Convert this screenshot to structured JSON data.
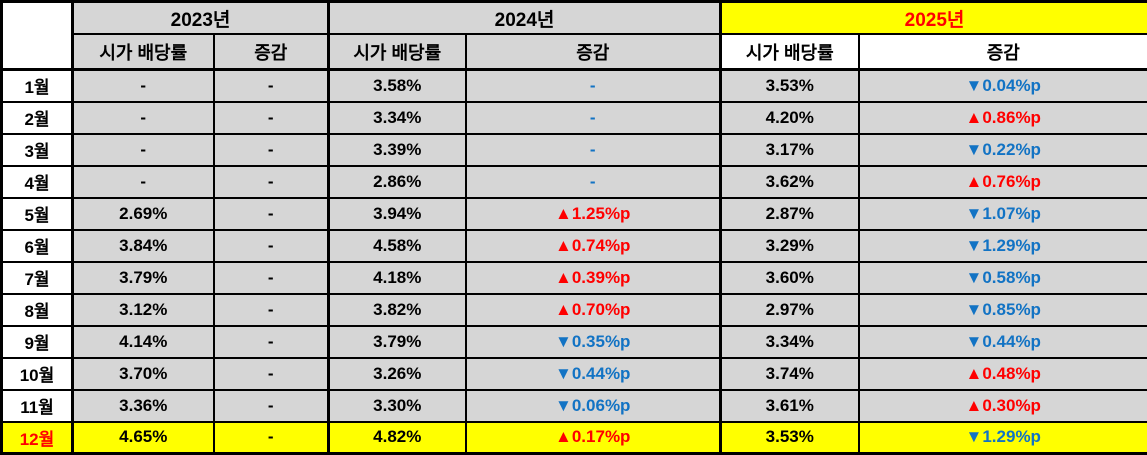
{
  "colors": {
    "header_gray": "#d6d6d6",
    "highlight_yellow": "#ffff00",
    "increase_red": "#ff0000",
    "decrease_blue": "#1273c4",
    "border_black": "#000000"
  },
  "chart_data": {
    "type": "table",
    "corner_label": "",
    "years": [
      {
        "label": "2023년",
        "highlight": false
      },
      {
        "label": "2024년",
        "highlight": false
      },
      {
        "label": "2025년",
        "highlight": true
      }
    ],
    "sub_headers": {
      "yield": "시가 배당률",
      "change": "증감"
    },
    "rows": [
      {
        "month": "1월",
        "highlight": false,
        "y2023_yield": "-",
        "y2023_change": "-",
        "y2023_change_color": "black",
        "y2024_yield": "3.58%",
        "y2024_change": "-",
        "y2024_change_color": "blue",
        "y2025_yield": "3.53%",
        "y2025_change": "▼0.04%p",
        "y2025_change_color": "blue"
      },
      {
        "month": "2월",
        "highlight": false,
        "y2023_yield": "-",
        "y2023_change": "-",
        "y2023_change_color": "black",
        "y2024_yield": "3.34%",
        "y2024_change": "-",
        "y2024_change_color": "blue",
        "y2025_yield": "4.20%",
        "y2025_change": "▲0.86%p",
        "y2025_change_color": "red"
      },
      {
        "month": "3월",
        "highlight": false,
        "y2023_yield": "-",
        "y2023_change": "-",
        "y2023_change_color": "black",
        "y2024_yield": "3.39%",
        "y2024_change": "-",
        "y2024_change_color": "blue",
        "y2025_yield": "3.17%",
        "y2025_change": "▼0.22%p",
        "y2025_change_color": "blue"
      },
      {
        "month": "4월",
        "highlight": false,
        "y2023_yield": "-",
        "y2023_change": "-",
        "y2023_change_color": "black",
        "y2024_yield": "2.86%",
        "y2024_change": "-",
        "y2024_change_color": "blue",
        "y2025_yield": "3.62%",
        "y2025_change": "▲0.76%p",
        "y2025_change_color": "red"
      },
      {
        "month": "5월",
        "highlight": false,
        "y2023_yield": "2.69%",
        "y2023_change": "-",
        "y2023_change_color": "black",
        "y2024_yield": "3.94%",
        "y2024_change": "▲1.25%p",
        "y2024_change_color": "red",
        "y2025_yield": "2.87%",
        "y2025_change": "▼1.07%p",
        "y2025_change_color": "blue"
      },
      {
        "month": "6월",
        "highlight": false,
        "y2023_yield": "3.84%",
        "y2023_change": "-",
        "y2023_change_color": "black",
        "y2024_yield": "4.58%",
        "y2024_change": "▲0.74%p",
        "y2024_change_color": "red",
        "y2025_yield": "3.29%",
        "y2025_change": "▼1.29%p",
        "y2025_change_color": "blue"
      },
      {
        "month": "7월",
        "highlight": false,
        "y2023_yield": "3.79%",
        "y2023_change": "-",
        "y2023_change_color": "black",
        "y2024_yield": "4.18%",
        "y2024_change": "▲0.39%p",
        "y2024_change_color": "red",
        "y2025_yield": "3.60%",
        "y2025_change": "▼0.58%p",
        "y2025_change_color": "blue"
      },
      {
        "month": "8월",
        "highlight": false,
        "y2023_yield": "3.12%",
        "y2023_change": "-",
        "y2023_change_color": "black",
        "y2024_yield": "3.82%",
        "y2024_change": "▲0.70%p",
        "y2024_change_color": "red",
        "y2025_yield": "2.97%",
        "y2025_change": "▼0.85%p",
        "y2025_change_color": "blue"
      },
      {
        "month": "9월",
        "highlight": false,
        "y2023_yield": "4.14%",
        "y2023_change": "-",
        "y2023_change_color": "black",
        "y2024_yield": "3.79%",
        "y2024_change": "▼0.35%p",
        "y2024_change_color": "blue",
        "y2025_yield": "3.34%",
        "y2025_change": "▼0.44%p",
        "y2025_change_color": "blue"
      },
      {
        "month": "10월",
        "highlight": false,
        "y2023_yield": "3.70%",
        "y2023_change": "-",
        "y2023_change_color": "black",
        "y2024_yield": "3.26%",
        "y2024_change": "▼0.44%p",
        "y2024_change_color": "blue",
        "y2025_yield": "3.74%",
        "y2025_change": "▲0.48%p",
        "y2025_change_color": "red"
      },
      {
        "month": "11월",
        "highlight": false,
        "y2023_yield": "3.36%",
        "y2023_change": "-",
        "y2023_change_color": "black",
        "y2024_yield": "3.30%",
        "y2024_change": "▼0.06%p",
        "y2024_change_color": "blue",
        "y2025_yield": "3.61%",
        "y2025_change": "▲0.30%p",
        "y2025_change_color": "red"
      },
      {
        "month": "12월",
        "highlight": true,
        "y2023_yield": "4.65%",
        "y2023_change": "-",
        "y2023_change_color": "black",
        "y2024_yield": "4.82%",
        "y2024_change": "▲0.17%p",
        "y2024_change_color": "red",
        "y2025_yield": "3.53%",
        "y2025_change": "▼1.29%p",
        "y2025_change_color": "blue"
      }
    ]
  }
}
